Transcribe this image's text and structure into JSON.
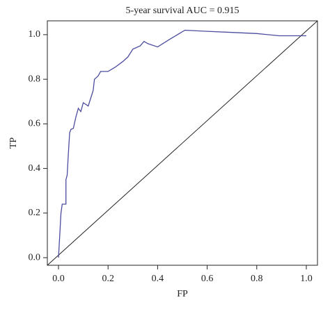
{
  "chart_data": {
    "type": "line",
    "title": "5-year survival AUC = 0.915",
    "xlabel": "FP",
    "ylabel": "TP",
    "x": [
      0,
      0.005,
      0.01,
      0.015,
      0.03,
      0.03,
      0.035,
      0.04,
      0.045,
      0.05,
      0.06,
      0.07,
      0.08,
      0.09,
      0.1,
      0.12,
      0.14,
      0.145,
      0.16,
      0.17,
      0.2,
      0.23,
      0.26,
      0.28,
      0.3,
      0.33,
      0.345,
      0.36,
      0.4,
      0.45,
      0.51,
      0.6,
      0.7,
      0.8,
      0.89,
      1.0
    ],
    "series": [
      {
        "color": "#4b4c9e",
        "values": [
          0,
          0.1,
          0.2,
          0.24,
          0.24,
          0.35,
          0.37,
          0.47,
          0.56,
          0.575,
          0.58,
          0.63,
          0.67,
          0.655,
          0.695,
          0.68,
          0.75,
          0.8,
          0.815,
          0.835,
          0.835,
          0.855,
          0.88,
          0.9,
          0.935,
          0.95,
          0.97,
          0.96,
          0.945,
          0.98,
          1.02,
          1.015,
          1.01,
          1.005,
          0.995,
          0.995
        ]
      }
    ],
    "xlim": [
      -0.045,
      1.045
    ],
    "ylim": [
      -0.034,
      1.062
    ],
    "xticks": [
      {
        "value": 0,
        "label": "0.0"
      },
      0.2,
      0.4,
      0.6,
      0.8,
      {
        "value": 1,
        "label": "1.0"
      }
    ],
    "yticks": [
      {
        "value": 0,
        "label": "0.0"
      },
      0.2,
      0.4,
      0.6,
      0.8,
      {
        "value": 1,
        "label": "1.0"
      }
    ]
  }
}
